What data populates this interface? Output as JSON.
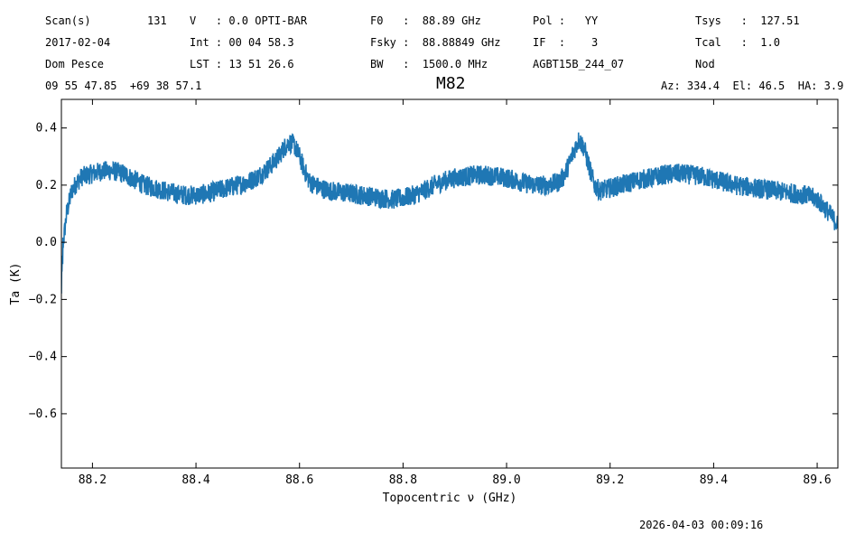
{
  "header": {
    "row1": {
      "scan_label": "Scan(s)",
      "scan_value": "131",
      "velocity": "V   : 0.0 OPTI-BAR",
      "f0": "F0   :  88.89 GHz",
      "pol": "Pol :   YY",
      "tsys": "Tsys   :  127.51"
    },
    "row2": {
      "date": "2017-02-04",
      "integration": "Int : 00 04 58.3",
      "fsky": "Fsky :  88.88849 GHz",
      "if": "IF  :    3",
      "tcal": "Tcal   :  1.0"
    },
    "row3": {
      "observer": "Dom Pesce",
      "lst": "LST : 13 51 26.6",
      "bw": "BW   :  1500.0 MHz",
      "project": "AGBT15B_244_07",
      "procedure": "Nod"
    },
    "row4": {
      "coords": "09 55 47.85  +69 38 57.1",
      "azel": "Az: 334.4  El: 46.5  HA: 3.9"
    }
  },
  "timestamp": "2026-04-03 00:09:16",
  "chart_data": {
    "type": "line",
    "title": "M82",
    "xlabel": "Topocentric ν (GHz)",
    "ylabel": "Ta (K)",
    "xlim": [
      88.14,
      89.64
    ],
    "ylim": [
      -0.79,
      0.5
    ],
    "xticks": [
      88.2,
      88.4,
      88.6,
      88.8,
      89.0,
      89.2,
      89.4,
      89.6
    ],
    "xtick_labels": [
      "88.2",
      "88.4",
      "88.6",
      "88.8",
      "89.0",
      "89.2",
      "89.4",
      "89.6"
    ],
    "yticks": [
      0.4,
      0.2,
      0.0,
      -0.2,
      -0.4,
      -0.6
    ],
    "ytick_labels": [
      "0.4",
      "0.2",
      "0.0",
      "−0.2",
      "−0.4",
      "−0.6"
    ],
    "line_color": "#1f77b4",
    "grid": false,
    "series": [
      {
        "x": [
          88.14,
          88.145,
          88.15,
          88.16,
          88.17,
          88.18,
          88.2,
          88.22,
          88.24,
          88.26,
          88.28,
          88.3,
          88.32,
          88.34,
          88.36,
          88.38,
          88.4,
          88.42,
          88.44,
          88.46,
          88.48,
          88.5,
          88.52,
          88.54,
          88.56,
          88.57,
          88.58,
          88.59,
          88.6,
          88.61,
          88.62,
          88.64,
          88.66,
          88.68,
          88.7,
          88.72,
          88.74,
          88.76,
          88.78,
          88.8,
          88.82,
          88.84,
          88.86,
          88.88,
          88.9,
          88.92,
          88.94,
          88.96,
          88.98,
          89.0,
          89.02,
          89.04,
          89.06,
          89.08,
          89.1,
          89.11,
          89.12,
          89.13,
          89.14,
          89.15,
          89.16,
          89.17,
          89.18,
          89.2,
          89.22,
          89.24,
          89.26,
          89.28,
          89.3,
          89.32,
          89.34,
          89.36,
          89.38,
          89.4,
          89.42,
          89.44,
          89.46,
          89.48,
          89.5,
          89.52,
          89.54,
          89.56,
          89.58,
          89.6,
          89.62,
          89.64
        ],
        "y": [
          -0.04,
          0.02,
          0.1,
          0.18,
          0.21,
          0.23,
          0.24,
          0.25,
          0.25,
          0.24,
          0.22,
          0.2,
          0.19,
          0.18,
          0.17,
          0.165,
          0.165,
          0.17,
          0.18,
          0.19,
          0.2,
          0.21,
          0.23,
          0.26,
          0.3,
          0.33,
          0.35,
          0.34,
          0.3,
          0.25,
          0.21,
          0.19,
          0.18,
          0.175,
          0.17,
          0.165,
          0.16,
          0.155,
          0.15,
          0.155,
          0.165,
          0.18,
          0.2,
          0.215,
          0.225,
          0.23,
          0.235,
          0.235,
          0.23,
          0.225,
          0.215,
          0.205,
          0.2,
          0.2,
          0.21,
          0.23,
          0.27,
          0.32,
          0.36,
          0.33,
          0.26,
          0.2,
          0.18,
          0.19,
          0.2,
          0.21,
          0.22,
          0.225,
          0.235,
          0.24,
          0.24,
          0.235,
          0.23,
          0.22,
          0.21,
          0.2,
          0.195,
          0.19,
          0.185,
          0.18,
          0.175,
          0.17,
          0.165,
          0.15,
          0.11,
          0.06
        ],
        "noise_amplitude": 0.035
      }
    ]
  }
}
